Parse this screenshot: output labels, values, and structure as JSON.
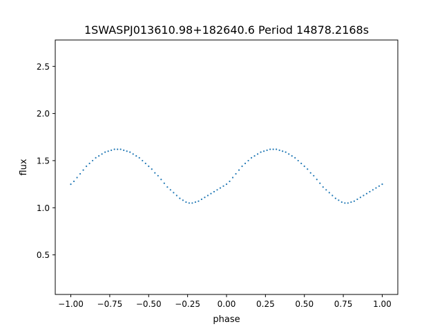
{
  "chart_data": {
    "type": "scatter",
    "title": "1SWASPJ013610.98+182640.6 Period 14878.2168s",
    "xlabel": "phase",
    "ylabel": "flux",
    "xlim": [
      -1.1,
      1.1
    ],
    "ylim": [
      0.08,
      2.78
    ],
    "grid": false,
    "legend": "none",
    "marker_color": "#1f77b4",
    "x_ticks": [
      -1.0,
      -0.75,
      -0.5,
      -0.25,
      0.0,
      0.25,
      0.5,
      0.75,
      1.0
    ],
    "x_tick_labels": [
      "−1.00",
      "−0.75",
      "−0.50",
      "−0.25",
      "0.00",
      "0.25",
      "0.50",
      "0.75",
      "1.00"
    ],
    "y_ticks": [
      0.5,
      1.0,
      1.5,
      2.0,
      2.5
    ],
    "y_tick_labels": [
      "0.5",
      "1.0",
      "1.5",
      "2.0",
      "2.5"
    ],
    "series": [
      {
        "x": [
          -1.0,
          -0.98,
          -0.96,
          -0.94,
          -0.92,
          -0.9,
          -0.88,
          -0.86,
          -0.84,
          -0.82,
          -0.8,
          -0.78,
          -0.76,
          -0.74,
          -0.72,
          -0.7,
          -0.68,
          -0.66,
          -0.64,
          -0.62,
          -0.6,
          -0.58,
          -0.56,
          -0.54,
          -0.52,
          -0.5,
          -0.48,
          -0.46,
          -0.44,
          -0.42,
          -0.4,
          -0.38,
          -0.36,
          -0.34,
          -0.32,
          -0.3,
          -0.28,
          -0.26,
          -0.24,
          -0.22,
          -0.2,
          -0.18,
          -0.16,
          -0.14,
          -0.12,
          -0.1,
          -0.08,
          -0.06,
          -0.04,
          -0.02,
          0.0,
          0.02,
          0.04,
          0.06,
          0.08,
          0.1,
          0.12,
          0.14,
          0.16,
          0.18,
          0.2,
          0.22,
          0.24,
          0.26,
          0.28,
          0.3,
          0.32,
          0.34,
          0.36,
          0.38,
          0.4,
          0.42,
          0.44,
          0.46,
          0.48,
          0.5,
          0.52,
          0.54,
          0.56,
          0.58,
          0.6,
          0.62,
          0.64,
          0.66,
          0.68,
          0.7,
          0.72,
          0.74,
          0.76,
          0.78,
          0.8,
          0.82,
          0.84,
          0.86,
          0.88,
          0.9,
          0.92,
          0.94,
          0.96,
          0.98,
          1.0
        ],
        "y": [
          1.25,
          1.28,
          1.32,
          1.36,
          1.4,
          1.44,
          1.47,
          1.5,
          1.53,
          1.55,
          1.57,
          1.59,
          1.6,
          1.61,
          1.62,
          1.62,
          1.62,
          1.61,
          1.6,
          1.59,
          1.57,
          1.55,
          1.53,
          1.5,
          1.47,
          1.44,
          1.41,
          1.37,
          1.34,
          1.3,
          1.26,
          1.22,
          1.19,
          1.16,
          1.13,
          1.1,
          1.08,
          1.06,
          1.05,
          1.05,
          1.06,
          1.07,
          1.09,
          1.11,
          1.13,
          1.15,
          1.17,
          1.19,
          1.21,
          1.23,
          1.25,
          1.28,
          1.32,
          1.36,
          1.4,
          1.44,
          1.47,
          1.5,
          1.53,
          1.55,
          1.57,
          1.59,
          1.6,
          1.61,
          1.62,
          1.62,
          1.62,
          1.61,
          1.6,
          1.59,
          1.57,
          1.55,
          1.53,
          1.5,
          1.47,
          1.44,
          1.41,
          1.37,
          1.34,
          1.3,
          1.26,
          1.22,
          1.19,
          1.16,
          1.13,
          1.1,
          1.08,
          1.06,
          1.05,
          1.05,
          1.06,
          1.07,
          1.09,
          1.11,
          1.13,
          1.15,
          1.17,
          1.19,
          1.21,
          1.23,
          1.25
        ]
      }
    ]
  }
}
